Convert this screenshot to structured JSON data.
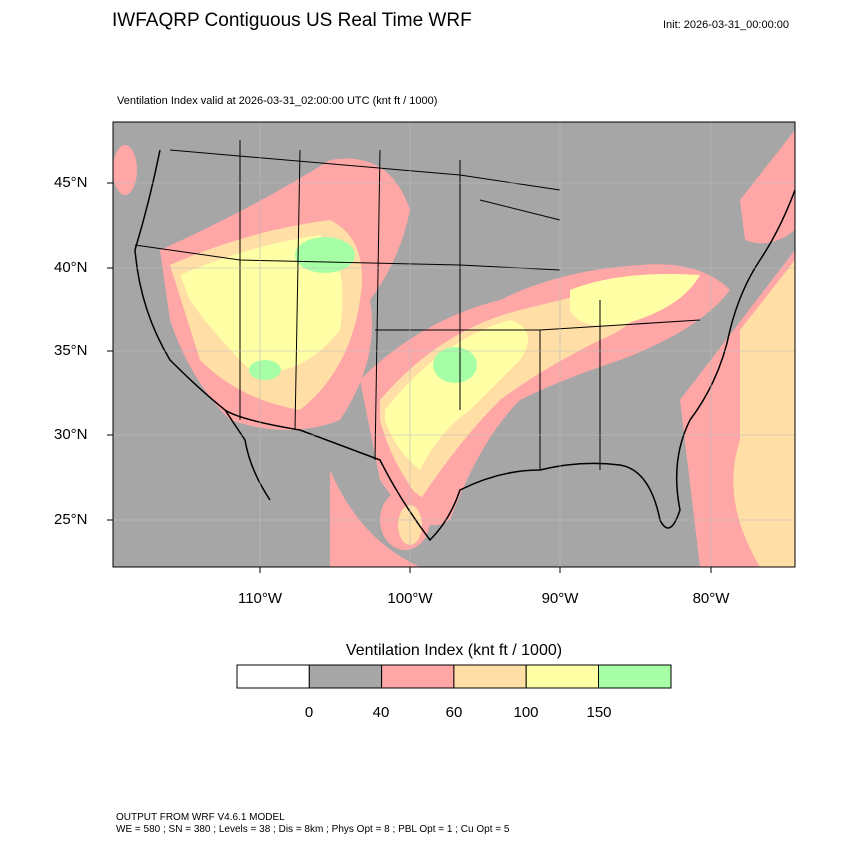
{
  "header": {
    "title": "IWFAQRP Contiguous US Real Time WRF",
    "init": "Init: 2026-03-31_00:00:00",
    "subtitle": "Ventilation Index valid at 2026-03-31_02:00:00 UTC   (knt ft / 1000)"
  },
  "map": {
    "lat_labels": [
      "45°N",
      "40°N",
      "35°N",
      "30°N",
      "25°N"
    ],
    "lon_labels": [
      "110°W",
      "100°W",
      "90°W",
      "80°W"
    ],
    "field": "Ventilation Index"
  },
  "colorbar": {
    "title": "Ventilation Index  (knt ft / 1000)",
    "labels": [
      "0",
      "40",
      "60",
      "100",
      "150"
    ],
    "colors": [
      "#ffffff",
      "#a6a6a6",
      "#ffa6a6",
      "#ffdfa6",
      "#ffffa6",
      "#a6ffa6"
    ]
  },
  "footer": {
    "line1": "OUTPUT FROM WRF V4.6.1 MODEL",
    "line2": "WE = 580 ; SN = 380 ; Levels = 38 ; Dis = 8km ; Phys Opt = 8 ; PBL Opt = 1 ; Cu Opt = 5"
  }
}
